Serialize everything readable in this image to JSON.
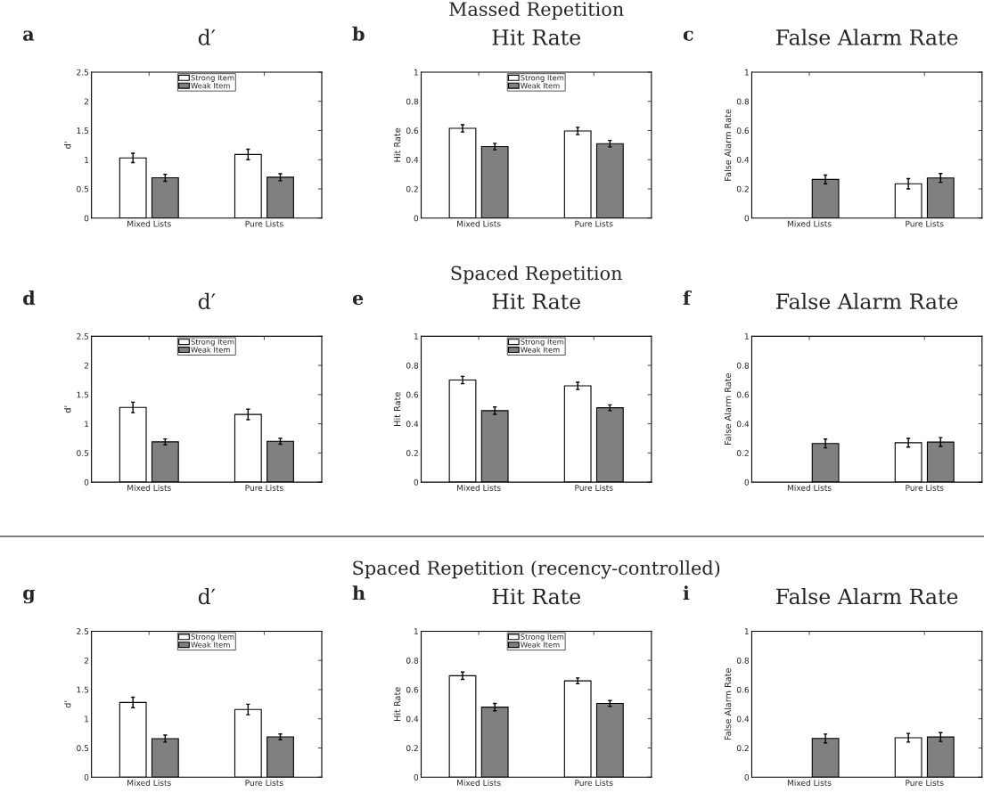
{
  "chart_data": [
    {
      "type": "bar",
      "title": "d′",
      "ylabel": "d'",
      "annotations": [
        "a"
      ],
      "categories": [
        "Mixed Lists",
        "Pure Lists"
      ],
      "ylim": [
        0,
        2.5
      ],
      "yticks": [
        0,
        0.5,
        1,
        1.5,
        2,
        2.5
      ],
      "legend": "top",
      "series": [
        {
          "name": "Strong Item",
          "color": "#ffffff",
          "values": [
            1.03,
            1.09
          ],
          "errors": [
            0.08,
            0.09
          ]
        },
        {
          "name": "Weak Item",
          "color": "#808080",
          "values": [
            0.69,
            0.7
          ],
          "errors": [
            0.06,
            0.06
          ]
        }
      ]
    },
    {
      "type": "bar",
      "title": "Hit Rate",
      "subtitle": "Massed Repetition",
      "ylabel": "Hit Rate",
      "annotations": [
        "b"
      ],
      "categories": [
        "Mixed Lists",
        "Pure Lists"
      ],
      "ylim": [
        0,
        1
      ],
      "yticks": [
        0,
        0.2,
        0.4,
        0.6,
        0.8,
        1
      ],
      "legend": "top",
      "series": [
        {
          "name": "Strong Item",
          "color": "#ffffff",
          "values": [
            0.615,
            0.597
          ],
          "errors": [
            0.025,
            0.025
          ]
        },
        {
          "name": "Weak Item",
          "color": "#808080",
          "values": [
            0.49,
            0.51
          ],
          "errors": [
            0.022,
            0.022
          ]
        }
      ]
    },
    {
      "type": "bar",
      "title": "False Alarm Rate",
      "ylabel": "False Alarm Rate",
      "annotations": [
        "c"
      ],
      "categories": [
        "Mixed Lists",
        "Pure Lists"
      ],
      "ylim": [
        0,
        1
      ],
      "yticks": [
        0,
        0.2,
        0.4,
        0.6,
        0.8,
        1
      ],
      "series": [
        {
          "color": "#ffffff",
          "values": [
            null,
            0.235
          ],
          "errors": [
            null,
            0.035
          ]
        },
        {
          "color": "#808080",
          "values": [
            0.265,
            0.275
          ],
          "errors": [
            0.03,
            0.03
          ]
        }
      ]
    },
    {
      "type": "bar",
      "title": "d′",
      "ylabel": "d'",
      "annotations": [
        "d"
      ],
      "categories": [
        "Mixed Lists",
        "Pure Lists"
      ],
      "ylim": [
        0,
        2.5
      ],
      "yticks": [
        0,
        0.5,
        1,
        1.5,
        2,
        2.5
      ],
      "legend": "top",
      "series": [
        {
          "name": "Strong Item",
          "color": "#ffffff",
          "values": [
            1.28,
            1.16
          ],
          "errors": [
            0.09,
            0.09
          ]
        },
        {
          "name": "Weak Item",
          "color": "#808080",
          "values": [
            0.69,
            0.7
          ],
          "errors": [
            0.05,
            0.05
          ]
        }
      ]
    },
    {
      "type": "bar",
      "title": "Hit Rate",
      "subtitle": "Spaced Repetition",
      "ylabel": "Hit Rate",
      "annotations": [
        "e"
      ],
      "categories": [
        "Mixed Lists",
        "Pure Lists"
      ],
      "ylim": [
        0,
        1
      ],
      "yticks": [
        0,
        0.2,
        0.4,
        0.6,
        0.8,
        1
      ],
      "legend": "top",
      "series": [
        {
          "name": "Strong Item",
          "color": "#ffffff",
          "values": [
            0.7,
            0.66
          ],
          "errors": [
            0.025,
            0.025
          ]
        },
        {
          "name": "Weak Item",
          "color": "#808080",
          "values": [
            0.49,
            0.51
          ],
          "errors": [
            0.025,
            0.02
          ]
        }
      ]
    },
    {
      "type": "bar",
      "title": "False Alarm Rate",
      "ylabel": "False Alarm Rate",
      "annotations": [
        "f"
      ],
      "categories": [
        "Mixed Lists",
        "Pure Lists"
      ],
      "ylim": [
        0,
        1
      ],
      "yticks": [
        0,
        0.2,
        0.4,
        0.6,
        0.8,
        1
      ],
      "series": [
        {
          "color": "#ffffff",
          "values": [
            null,
            0.27
          ],
          "errors": [
            null,
            0.03
          ]
        },
        {
          "color": "#808080",
          "values": [
            0.265,
            0.275
          ],
          "errors": [
            0.03,
            0.03
          ]
        }
      ]
    },
    {
      "type": "bar",
      "title": "d′",
      "ylabel": "d'",
      "annotations": [
        "g"
      ],
      "categories": [
        "Mixed Lists",
        "Pure Lists"
      ],
      "ylim": [
        0,
        2.5
      ],
      "yticks": [
        0,
        0.5,
        1,
        1.5,
        2,
        2.5
      ],
      "legend": "top",
      "series": [
        {
          "name": "Strong Item",
          "color": "#ffffff",
          "values": [
            1.28,
            1.16
          ],
          "errors": [
            0.09,
            0.09
          ]
        },
        {
          "name": "Weak Item",
          "color": "#808080",
          "values": [
            0.66,
            0.69
          ],
          "errors": [
            0.06,
            0.05
          ]
        }
      ]
    },
    {
      "type": "bar",
      "title": "Hit Rate",
      "subtitle": "Spaced Repetition (recency-controlled)",
      "ylabel": "Hit Rate",
      "annotations": [
        "h"
      ],
      "categories": [
        "Mixed Lists",
        "Pure Lists"
      ],
      "ylim": [
        0,
        1
      ],
      "yticks": [
        0,
        0.2,
        0.4,
        0.6,
        0.8,
        1
      ],
      "legend": "top",
      "series": [
        {
          "name": "Strong Item",
          "color": "#ffffff",
          "values": [
            0.695,
            0.66
          ],
          "errors": [
            0.025,
            0.02
          ]
        },
        {
          "name": "Weak Item",
          "color": "#808080",
          "values": [
            0.48,
            0.505
          ],
          "errors": [
            0.025,
            0.02
          ]
        }
      ]
    },
    {
      "type": "bar",
      "title": "False Alarm Rate",
      "ylabel": "False Alarm Rate",
      "annotations": [
        "i"
      ],
      "categories": [
        "Mixed Lists",
        "Pure Lists"
      ],
      "ylim": [
        0,
        1
      ],
      "yticks": [
        0,
        0.2,
        0.4,
        0.6,
        0.8,
        1
      ],
      "series": [
        {
          "color": "#ffffff",
          "values": [
            null,
            0.27
          ],
          "errors": [
            null,
            0.03
          ]
        },
        {
          "color": "#808080",
          "values": [
            0.265,
            0.275
          ],
          "errors": [
            0.03,
            0.03
          ]
        }
      ]
    }
  ]
}
